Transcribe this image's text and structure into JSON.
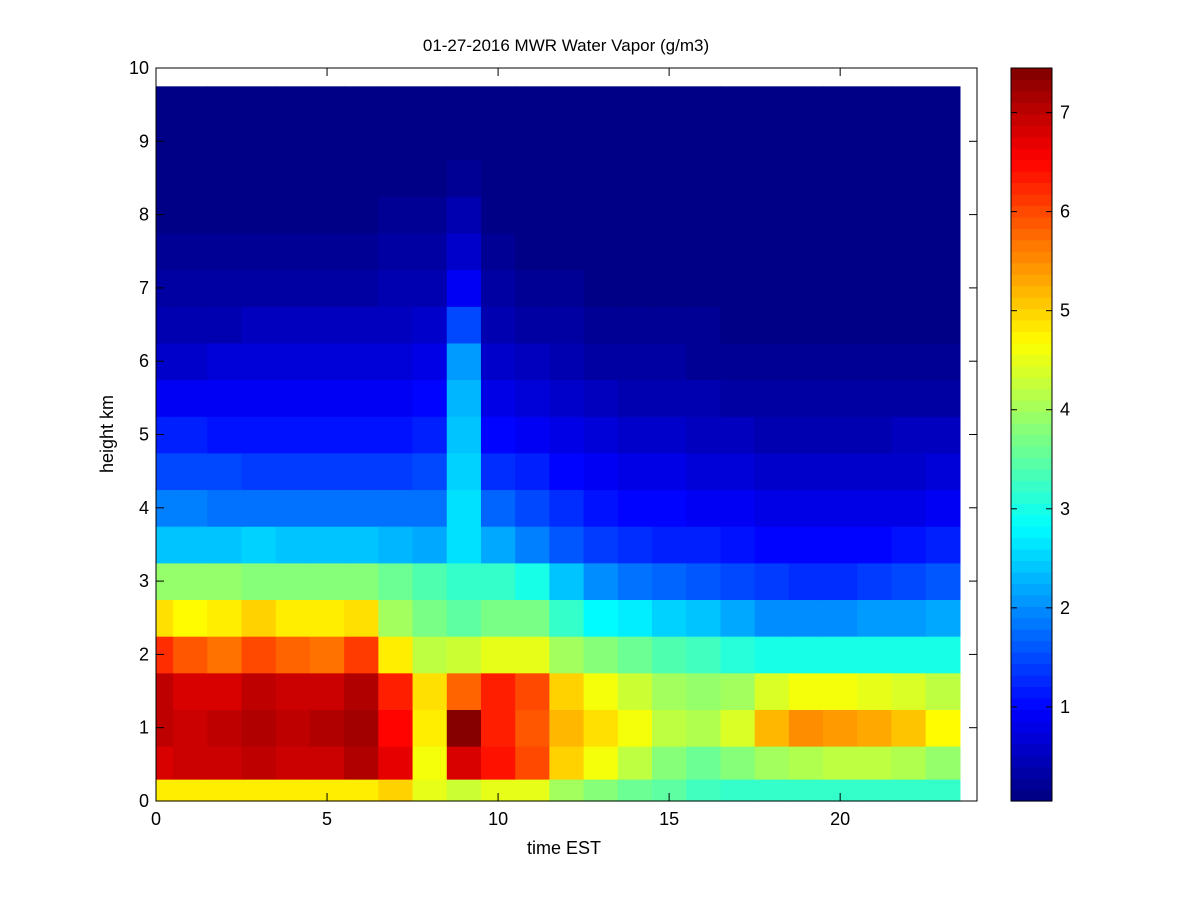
{
  "chart_data": {
    "type": "heatmap",
    "title": "01-27-2016 MWR Water Vapor (g/m3)",
    "xlabel": "time EST",
    "ylabel": "height km",
    "xlim": [
      0,
      24
    ],
    "ylim": [
      0,
      10
    ],
    "x_ticks": [
      "0",
      "5",
      "10",
      "15",
      "20"
    ],
    "y_ticks": [
      "0",
      "1",
      "2",
      "3",
      "4",
      "5",
      "6",
      "7",
      "8",
      "9",
      "10"
    ],
    "colorbar": {
      "colormap": "jet",
      "range": [
        0.05,
        7.45
      ],
      "ticks": [
        "1",
        "2",
        "3",
        "4",
        "5",
        "6",
        "7"
      ]
    },
    "x": [
      0,
      1,
      2,
      3,
      4,
      5,
      6,
      7,
      8,
      9,
      10,
      11,
      12,
      13,
      14,
      15,
      16,
      17,
      18,
      19,
      20,
      21,
      22,
      23
    ],
    "y": [
      0.1,
      0.5,
      1.0,
      1.5,
      2.0,
      2.5,
      3.0,
      3.5,
      4.0,
      4.5,
      5.0,
      5.5,
      6.0,
      6.5,
      7.0,
      7.5,
      8.0,
      8.5,
      9.0,
      9.5
    ],
    "z": [
      [
        4.8,
        4.8,
        4.8,
        4.8,
        4.8,
        4.8,
        4.8,
        5.0,
        4.5,
        4.3,
        4.5,
        4.5,
        4.0,
        3.8,
        3.6,
        3.5,
        3.3,
        3.2,
        3.2,
        3.2,
        3.2,
        3.2,
        3.2,
        3.2
      ],
      [
        6.8,
        6.9,
        6.9,
        7.0,
        6.9,
        6.9,
        7.1,
        6.7,
        4.6,
        6.8,
        6.4,
        6.0,
        5.0,
        4.6,
        4.2,
        3.8,
        3.6,
        3.8,
        4.0,
        4.1,
        4.2,
        4.2,
        4.1,
        3.9
      ],
      [
        7.0,
        6.9,
        7.0,
        7.1,
        7.0,
        7.1,
        7.2,
        6.5,
        4.8,
        7.4,
        6.3,
        5.9,
        5.2,
        4.9,
        4.6,
        4.2,
        4.1,
        4.4,
        5.2,
        5.5,
        5.4,
        5.3,
        5.1,
        4.7
      ],
      [
        7.0,
        6.8,
        6.8,
        7.0,
        6.9,
        6.9,
        7.1,
        6.3,
        4.9,
        5.8,
        6.3,
        6.0,
        5.0,
        4.6,
        4.3,
        4.0,
        3.9,
        4.0,
        4.4,
        4.6,
        4.6,
        4.5,
        4.4,
        4.2
      ],
      [
        6.2,
        5.9,
        5.7,
        6.0,
        5.8,
        5.7,
        6.1,
        4.8,
        4.2,
        4.3,
        4.5,
        4.5,
        4.0,
        3.8,
        3.6,
        3.4,
        3.3,
        3.1,
        3.0,
        3.0,
        3.0,
        3.0,
        3.0,
        3.0
      ],
      [
        4.9,
        4.7,
        4.8,
        5.0,
        4.8,
        4.8,
        4.9,
        4.0,
        3.7,
        3.5,
        3.7,
        3.7,
        3.2,
        2.8,
        2.7,
        2.5,
        2.4,
        2.2,
        2.0,
        2.0,
        2.0,
        2.1,
        2.1,
        2.2
      ],
      [
        3.9,
        3.9,
        3.9,
        3.8,
        3.8,
        3.8,
        3.8,
        3.6,
        3.4,
        3.2,
        3.2,
        3.0,
        2.4,
        2.0,
        1.8,
        1.7,
        1.6,
        1.5,
        1.4,
        1.3,
        1.3,
        1.4,
        1.5,
        1.6
      ],
      [
        2.4,
        2.4,
        2.4,
        2.5,
        2.4,
        2.4,
        2.4,
        2.3,
        2.2,
        2.6,
        2.2,
        1.9,
        1.6,
        1.4,
        1.3,
        1.2,
        1.2,
        1.1,
        1.0,
        1.0,
        1.0,
        1.0,
        1.1,
        1.2
      ],
      [
        1.9,
        1.9,
        1.8,
        1.8,
        1.8,
        1.8,
        1.8,
        1.8,
        1.8,
        2.6,
        1.7,
        1.5,
        1.3,
        1.1,
        1.0,
        1.0,
        0.9,
        0.9,
        0.8,
        0.8,
        0.8,
        0.8,
        0.8,
        0.9
      ],
      [
        1.5,
        1.5,
        1.5,
        1.4,
        1.4,
        1.4,
        1.4,
        1.4,
        1.5,
        2.5,
        1.3,
        1.2,
        1.0,
        0.9,
        0.8,
        0.8,
        0.7,
        0.7,
        0.6,
        0.6,
        0.6,
        0.6,
        0.6,
        0.7
      ],
      [
        1.2,
        1.2,
        1.1,
        1.1,
        1.1,
        1.1,
        1.1,
        1.1,
        1.2,
        2.4,
        1.0,
        0.9,
        0.8,
        0.7,
        0.6,
        0.6,
        0.5,
        0.5,
        0.4,
        0.4,
        0.4,
        0.4,
        0.5,
        0.5
      ],
      [
        0.9,
        0.9,
        0.9,
        0.9,
        0.9,
        0.9,
        0.9,
        0.9,
        1.0,
        2.3,
        0.8,
        0.7,
        0.6,
        0.5,
        0.4,
        0.4,
        0.4,
        0.3,
        0.3,
        0.3,
        0.3,
        0.3,
        0.3,
        0.3
      ],
      [
        0.6,
        0.6,
        0.7,
        0.7,
        0.7,
        0.7,
        0.7,
        0.7,
        0.8,
        2.1,
        0.6,
        0.5,
        0.4,
        0.3,
        0.3,
        0.3,
        0.2,
        0.2,
        0.2,
        0.2,
        0.2,
        0.2,
        0.2,
        0.2
      ],
      [
        0.4,
        0.4,
        0.4,
        0.5,
        0.5,
        0.5,
        0.5,
        0.5,
        0.6,
        1.5,
        0.4,
        0.3,
        0.3,
        0.2,
        0.2,
        0.2,
        0.2,
        0.1,
        0.1,
        0.1,
        0.1,
        0.1,
        0.1,
        0.1
      ],
      [
        0.3,
        0.3,
        0.3,
        0.3,
        0.3,
        0.3,
        0.3,
        0.4,
        0.4,
        0.9,
        0.3,
        0.2,
        0.2,
        0.1,
        0.1,
        0.1,
        0.1,
        0.1,
        0.1,
        0.1,
        0.1,
        0.1,
        0.1,
        0.1
      ],
      [
        0.2,
        0.2,
        0.2,
        0.2,
        0.2,
        0.2,
        0.2,
        0.3,
        0.3,
        0.6,
        0.2,
        0.1,
        0.1,
        0.1,
        0.1,
        0.1,
        0.1,
        0.1,
        0.1,
        0.1,
        0.1,
        0.1,
        0.1,
        0.1
      ],
      [
        0.1,
        0.1,
        0.1,
        0.1,
        0.1,
        0.1,
        0.1,
        0.2,
        0.2,
        0.4,
        0.1,
        0.1,
        0.1,
        0.1,
        0.1,
        0.1,
        0.1,
        0.1,
        0.1,
        0.1,
        0.1,
        0.1,
        0.1,
        0.1
      ],
      [
        0.1,
        0.1,
        0.1,
        0.1,
        0.1,
        0.1,
        0.1,
        0.1,
        0.1,
        0.2,
        0.1,
        0.1,
        0.1,
        0.1,
        0.1,
        0.1,
        0.1,
        0.1,
        0.1,
        0.1,
        0.1,
        0.1,
        0.1,
        0.1
      ],
      [
        0.1,
        0.1,
        0.1,
        0.1,
        0.1,
        0.1,
        0.1,
        0.1,
        0.1,
        0.1,
        0.1,
        0.1,
        0.1,
        0.1,
        0.1,
        0.1,
        0.1,
        0.1,
        0.1,
        0.1,
        0.1,
        0.1,
        0.1,
        0.1
      ],
      [
        0.1,
        0.1,
        0.1,
        0.1,
        0.1,
        0.1,
        0.1,
        0.1,
        0.1,
        0.1,
        0.1,
        0.1,
        0.1,
        0.1,
        0.1,
        0.1,
        0.1,
        0.1,
        0.1,
        0.1,
        0.1,
        0.1,
        0.1,
        0.1
      ]
    ]
  }
}
